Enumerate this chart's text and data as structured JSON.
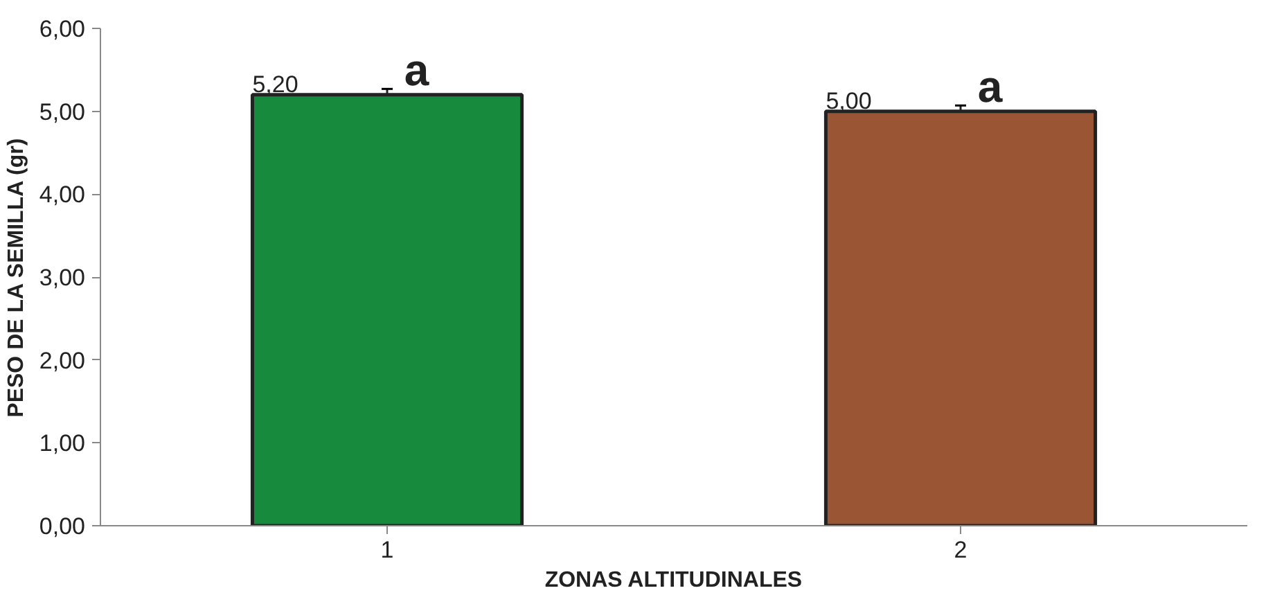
{
  "chart_data": {
    "type": "bar",
    "xlabel": "ZONAS ALTITUDINALES",
    "ylabel": "PESO DE LA SEMILLA (gr)",
    "categories": [
      "1",
      "2"
    ],
    "values": [
      5.2,
      5.0
    ],
    "colors": [
      "#178a3e",
      "#9a5535"
    ],
    "errors": [
      0.07,
      0.07
    ],
    "value_labels": [
      "5,20",
      "5,00"
    ],
    "annotations": [
      {
        "text": "a",
        "x": "1",
        "y": 5.2
      },
      {
        "text": "a",
        "x": "2",
        "y": 5.0
      }
    ],
    "ylim": [
      0,
      6
    ],
    "yticks": [
      {
        "value": 0,
        "label": "0,00"
      },
      {
        "value": 1,
        "label": "1,00"
      },
      {
        "value": 2,
        "label": "2,00"
      },
      {
        "value": 3,
        "label": "3,00"
      },
      {
        "value": 4,
        "label": "4,00"
      },
      {
        "value": 5,
        "label": "5,00"
      },
      {
        "value": 6,
        "label": "6,00"
      }
    ],
    "grid": false
  }
}
